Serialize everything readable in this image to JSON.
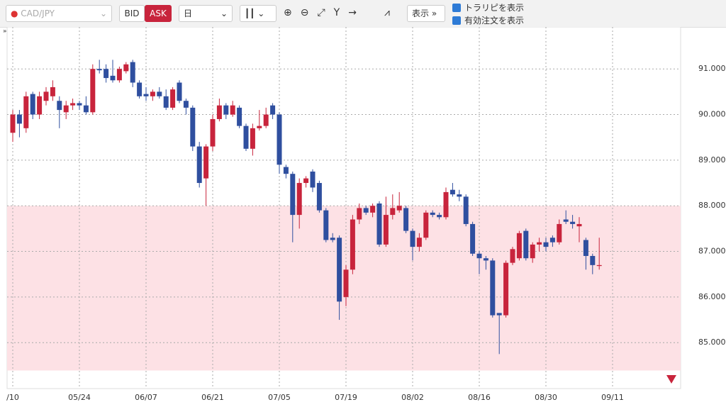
{
  "toolbar": {
    "pair": "CAD/JPY",
    "bid": "BID",
    "ask": "ASK",
    "period": "日",
    "display": "表示",
    "options": [
      "トラリピを表示",
      "有効注文を表示"
    ]
  },
  "chart_data": {
    "type": "candlestick",
    "categories": [
      "/10",
      null,
      null,
      null,
      null,
      null,
      null,
      null,
      null,
      null,
      "05/24",
      null,
      null,
      null,
      null,
      null,
      null,
      null,
      null,
      null,
      "06/07",
      null,
      null,
      null,
      null,
      null,
      null,
      null,
      null,
      null,
      "06/21",
      null,
      null,
      null,
      null,
      null,
      null,
      null,
      null,
      null,
      "07/05",
      null,
      null,
      null,
      null,
      null,
      null,
      null,
      null,
      null,
      "07/19",
      null,
      null,
      null,
      null,
      null,
      null,
      null,
      null,
      null,
      "08/02",
      null,
      null,
      null,
      null,
      null,
      null,
      null,
      null,
      null,
      "08/16",
      null,
      null,
      null,
      null,
      null,
      null,
      null,
      null,
      null,
      "08/30",
      null,
      null,
      null,
      null,
      null,
      null,
      null,
      null,
      null,
      "09/11"
    ],
    "open": [
      89.6,
      90.0,
      89.7,
      90.45,
      90.0,
      90.3,
      90.4,
      90.3,
      90.05,
      90.2,
      90.25,
      90.2,
      90.05,
      91.0,
      91.0,
      90.85,
      90.75,
      90.95,
      91.15,
      90.7,
      90.45,
      90.4,
      90.5,
      90.4,
      90.15,
      90.7,
      90.3,
      90.15,
      89.3,
      88.6,
      89.3,
      89.9,
      90.2,
      90.0,
      90.15,
      89.75,
      89.25,
      89.7,
      89.75,
      90.2,
      90.0,
      88.85,
      88.7,
      87.8,
      88.5,
      88.75,
      88.5,
      87.9,
      87.3,
      87.3,
      86.0,
      86.6,
      87.7,
      87.95,
      87.85,
      88.05,
      87.15,
      87.8,
      87.9,
      87.95,
      87.45,
      87.1,
      87.3,
      87.85,
      87.8,
      87.75,
      88.35,
      88.25,
      88.2,
      87.6,
      86.95,
      86.85,
      86.8,
      85.65,
      85.6,
      86.75,
      86.85,
      87.45,
      86.85,
      87.15,
      87.2,
      87.3,
      87.2,
      87.7,
      87.65,
      87.55,
      87.25,
      86.9,
      86.68,
      null,
      null
    ],
    "high": [
      90.1,
      90.1,
      90.5,
      90.5,
      90.5,
      90.6,
      90.75,
      90.4,
      90.3,
      90.35,
      90.3,
      90.4,
      91.1,
      91.2,
      91.1,
      91.2,
      91.05,
      91.15,
      91.2,
      90.75,
      90.6,
      90.55,
      90.6,
      90.55,
      90.6,
      90.75,
      90.35,
      90.2,
      89.4,
      89.35,
      90.0,
      90.35,
      90.25,
      90.3,
      90.2,
      89.8,
      89.8,
      90.1,
      90.15,
      90.25,
      90.05,
      88.9,
      88.75,
      88.6,
      88.65,
      88.8,
      88.55,
      87.95,
      87.4,
      87.35,
      86.7,
      87.8,
      88.05,
      88.0,
      88.05,
      88.1,
      88.2,
      88.25,
      88.3,
      88.0,
      87.5,
      87.4,
      87.9,
      87.9,
      87.85,
      88.4,
      88.5,
      88.35,
      88.25,
      87.65,
      87.0,
      86.9,
      86.85,
      85.65,
      86.8,
      87.1,
      87.45,
      87.5,
      87.2,
      87.3,
      87.3,
      87.35,
      87.7,
      87.9,
      87.8,
      87.75,
      87.3,
      86.95,
      87.3,
      null,
      null
    ],
    "low": [
      89.4,
      89.5,
      89.6,
      89.9,
      89.9,
      90.2,
      90.3,
      89.7,
      89.9,
      90.1,
      90.1,
      90.0,
      90.0,
      90.9,
      90.7,
      90.7,
      90.7,
      90.9,
      90.6,
      90.35,
      90.3,
      90.3,
      90.35,
      90.1,
      90.1,
      90.25,
      90.0,
      89.2,
      88.4,
      88.0,
      89.2,
      89.85,
      89.9,
      89.95,
      89.7,
      89.2,
      89.1,
      89.65,
      89.7,
      89.9,
      88.7,
      88.6,
      87.2,
      87.5,
      88.4,
      88.3,
      87.85,
      87.2,
      87.2,
      85.5,
      85.8,
      86.5,
      87.6,
      87.8,
      87.75,
      87.1,
      87.1,
      87.7,
      87.85,
      87.4,
      86.8,
      87.0,
      87.25,
      87.75,
      87.7,
      87.7,
      88.2,
      88.1,
      87.55,
      86.9,
      86.5,
      86.6,
      85.55,
      84.75,
      85.55,
      86.7,
      86.8,
      86.8,
      86.75,
      87.0,
      87.0,
      87.1,
      87.15,
      87.6,
      87.5,
      87.2,
      86.6,
      86.5,
      86.6,
      null,
      null
    ],
    "close": [
      90.0,
      89.8,
      90.4,
      90.0,
      90.4,
      90.5,
      90.6,
      90.1,
      90.2,
      90.25,
      90.2,
      90.05,
      91.0,
      90.97,
      90.8,
      90.75,
      91.0,
      91.1,
      90.7,
      90.4,
      90.4,
      90.5,
      90.4,
      90.15,
      90.55,
      90.3,
      90.15,
      89.3,
      88.5,
      89.3,
      89.9,
      90.2,
      90.0,
      90.2,
      89.75,
      89.25,
      89.7,
      89.75,
      90.0,
      90.0,
      88.9,
      88.7,
      87.8,
      88.5,
      88.6,
      88.4,
      87.9,
      87.25,
      87.25,
      85.9,
      86.6,
      87.7,
      87.95,
      87.85,
      88.0,
      87.15,
      87.8,
      87.95,
      88.0,
      87.45,
      87.1,
      87.3,
      87.85,
      87.8,
      87.75,
      88.3,
      88.25,
      88.2,
      87.6,
      86.95,
      86.85,
      86.8,
      85.6,
      85.6,
      86.75,
      87.05,
      87.4,
      86.85,
      87.15,
      87.2,
      87.1,
      87.2,
      87.6,
      87.65,
      87.6,
      87.6,
      86.9,
      86.7,
      86.7,
      null,
      null
    ],
    "up_color": "#c8243c",
    "down_color": "#2f4f9f",
    "ylim": [
      84.04,
      91.92
    ],
    "yticks": [
      {
        "value": 85,
        "label": "85.000"
      },
      {
        "value": 86,
        "label": "86.000"
      },
      {
        "value": 87,
        "label": "87.000"
      },
      {
        "value": 88,
        "label": "88.000"
      },
      {
        "value": 89,
        "label": "89.000"
      },
      {
        "value": 90,
        "label": "90.000"
      },
      {
        "value": 91,
        "label": "91.000"
      }
    ],
    "grid": true,
    "zone": {
      "from": 88.0,
      "to": 84.39,
      "color": "#fde1e5"
    }
  }
}
